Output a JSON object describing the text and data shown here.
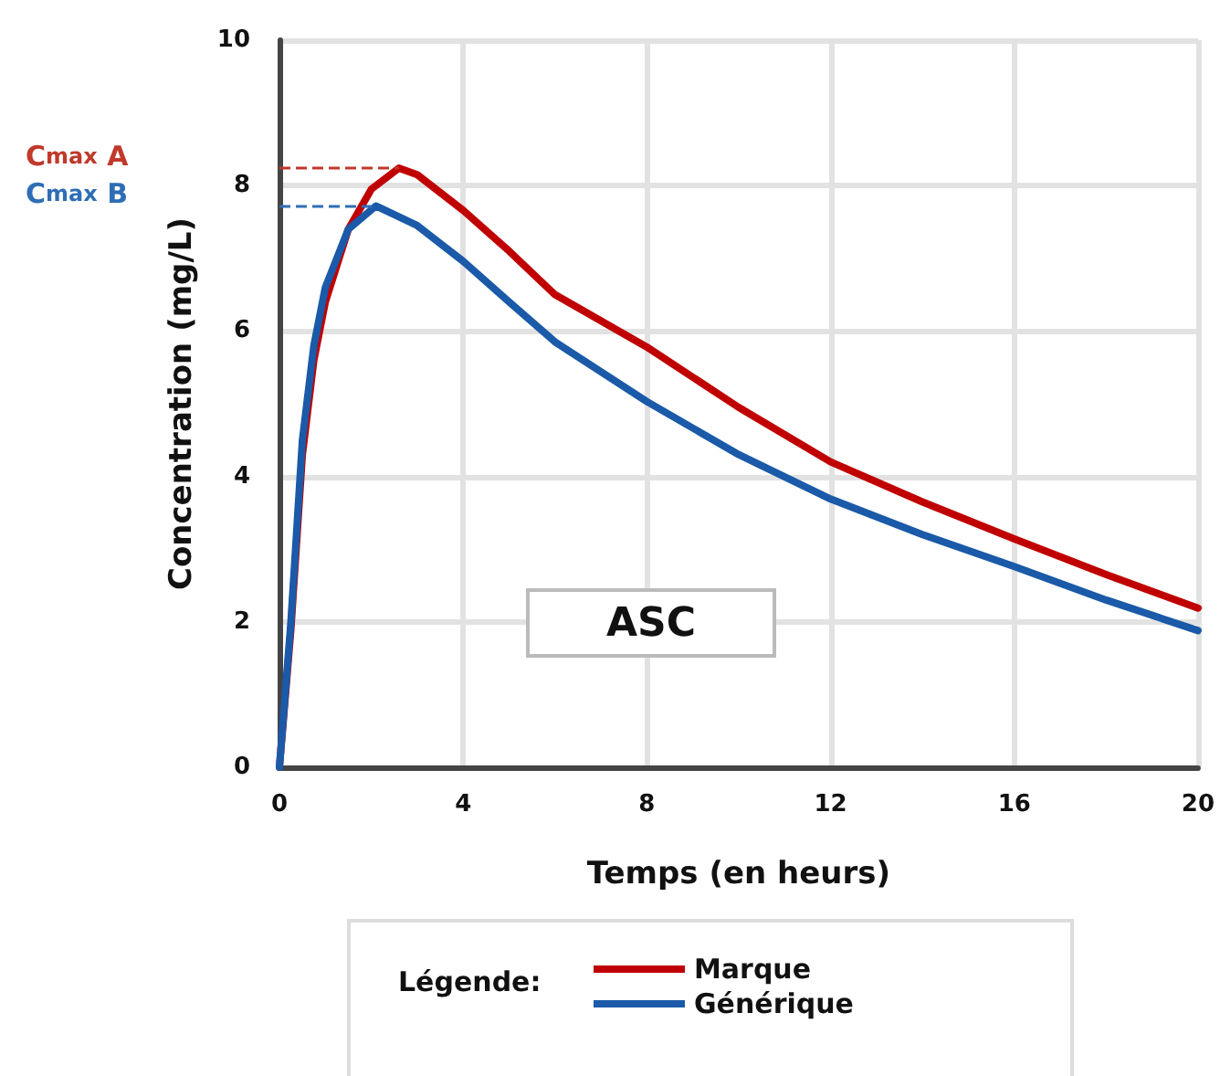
{
  "chart_data": {
    "type": "line",
    "xlabel": "Temps (en heurs)",
    "ylabel": "Concentration (mg/L)",
    "legend_title": "Légende:",
    "xlim": [
      0,
      20
    ],
    "xticks": [
      0,
      4,
      8,
      12,
      16,
      20
    ],
    "ylim": [
      0,
      10
    ],
    "yticks": [
      0,
      2,
      4,
      6,
      8,
      10
    ],
    "grid": true,
    "legend": "bottom",
    "marker": "none",
    "line_style": "solid",
    "annotations": [
      "ASC"
    ],
    "ref_lines": [
      {
        "axis": "y",
        "value": 8.24,
        "label": "C$_{max}$ A",
        "color": "#c0392b",
        "line_style": "dashed"
      },
      {
        "axis": "y",
        "value": 7.72,
        "label": "C$_{max}$ B",
        "color": "#2f6db5",
        "line_style": "dashed"
      }
    ],
    "series": [
      {
        "name": "Marque",
        "color": "#c00000",
        "x": [
          0,
          0.25,
          0.5,
          0.75,
          1,
          1.5,
          2,
          2.6,
          3,
          4,
          5,
          6,
          8,
          10,
          12,
          14,
          16,
          18,
          20
        ],
        "values": [
          0,
          1.9,
          4.3,
          5.6,
          6.4,
          7.4,
          7.95,
          8.24,
          8.15,
          7.66,
          7.1,
          6.5,
          5.78,
          4.95,
          4.2,
          3.65,
          3.14,
          2.65,
          2.19
        ]
      },
      {
        "name": "Générique",
        "color": "#1a5aa8",
        "x": [
          0,
          0.25,
          0.5,
          0.75,
          1,
          1.5,
          2.1,
          3,
          4,
          5,
          6,
          8,
          10,
          12,
          14,
          16,
          18,
          20
        ],
        "values": [
          0,
          2.0,
          4.5,
          5.8,
          6.6,
          7.4,
          7.72,
          7.45,
          6.96,
          6.4,
          5.85,
          5.03,
          4.3,
          3.69,
          3.2,
          2.76,
          2.3,
          1.88
        ]
      }
    ]
  }
}
